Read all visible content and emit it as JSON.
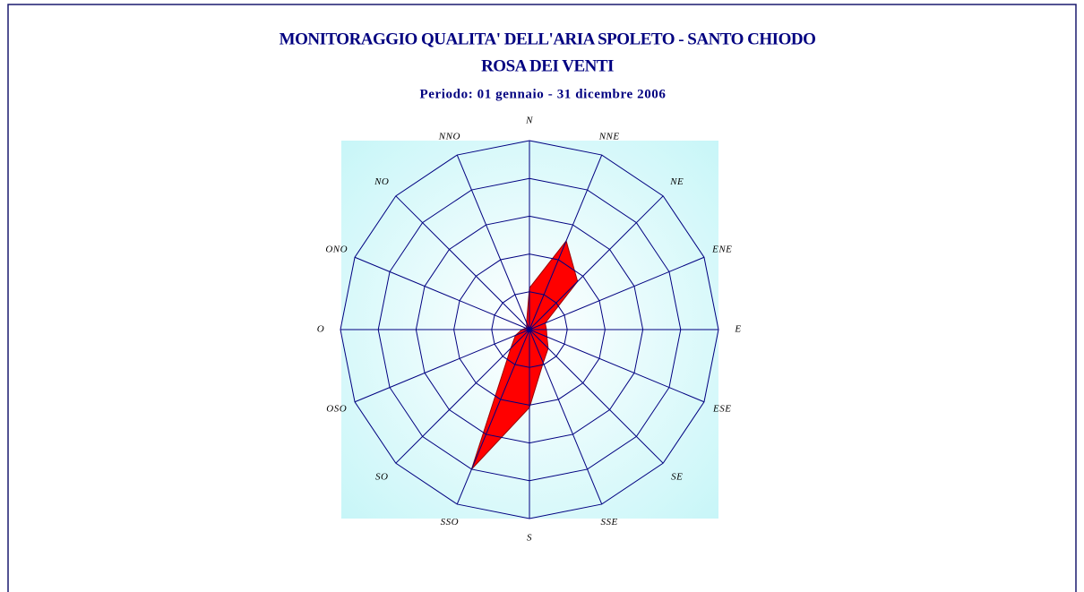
{
  "chart_data": {
    "type": "radar",
    "title": "MONITORAGGIO QUALITA' DELL'ARIA SPOLETO - SANTO CHIODO",
    "subtitle": "ROSA DEI VENTI",
    "period": "Periodo:  01 gennaio - 31 dicembre 2006",
    "categories": [
      "N",
      "NNE",
      "NE",
      "ENE",
      "E",
      "ESE",
      "SE",
      "SSE",
      "S",
      "SSO",
      "SO",
      "OSO",
      "O",
      "ONO",
      "NO",
      "NNO"
    ],
    "values": [
      1.1,
      2.54,
      1.8,
      0.45,
      0.45,
      0.5,
      0.7,
      0.95,
      2.06,
      4.0,
      0.7,
      0.4,
      0.2,
      0.1,
      0.1,
      0.2
    ],
    "color": "#ff0000",
    "ylim": [
      0,
      5
    ],
    "yticks": [
      1,
      2,
      3,
      4,
      5
    ],
    "grid": true
  }
}
